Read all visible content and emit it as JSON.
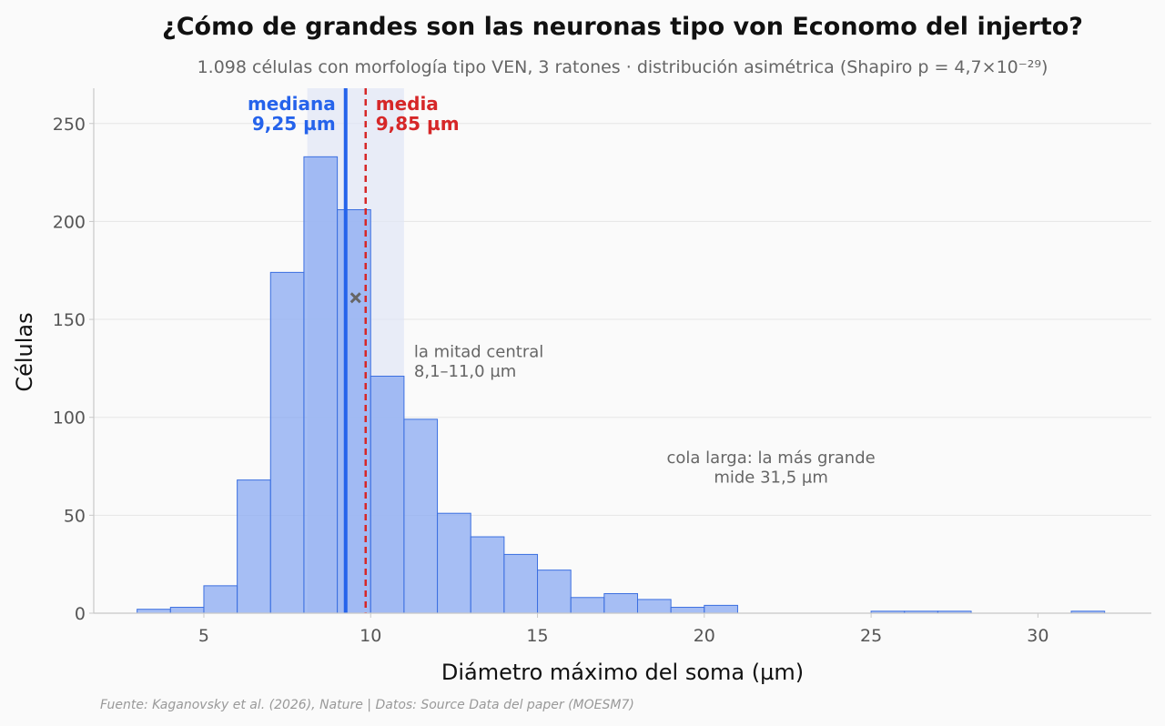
{
  "chart_data": {
    "type": "bar",
    "title": "¿Cómo de grandes son las neuronas tipo von Economo del injerto?",
    "subtitle": "1.098 células con morfología tipo VEN, 3 ratones · distribución asimétrica (Shapiro p = 4,7×10⁻²⁹)",
    "xlabel": "Diámetro máximo del soma (µm)",
    "ylabel": "Células",
    "xlim": [
      1.7,
      33.4
    ],
    "ylim": [
      0,
      268
    ],
    "xticks": [
      5,
      10,
      15,
      20,
      25,
      30
    ],
    "yticks": [
      0,
      50,
      100,
      150,
      200,
      250
    ],
    "grid": "horizontal",
    "bin_width": 1,
    "bins": [
      {
        "start": 3,
        "count": 2
      },
      {
        "start": 4,
        "count": 3
      },
      {
        "start": 5,
        "count": 14
      },
      {
        "start": 6,
        "count": 68
      },
      {
        "start": 7,
        "count": 174
      },
      {
        "start": 8,
        "count": 233
      },
      {
        "start": 9,
        "count": 206
      },
      {
        "start": 10,
        "count": 121
      },
      {
        "start": 11,
        "count": 99
      },
      {
        "start": 12,
        "count": 51
      },
      {
        "start": 13,
        "count": 39
      },
      {
        "start": 14,
        "count": 30
      },
      {
        "start": 15,
        "count": 22
      },
      {
        "start": 16,
        "count": 8
      },
      {
        "start": 17,
        "count": 10
      },
      {
        "start": 18,
        "count": 7
      },
      {
        "start": 19,
        "count": 3
      },
      {
        "start": 20,
        "count": 4
      },
      {
        "start": 21,
        "count": 0
      },
      {
        "start": 22,
        "count": 0
      },
      {
        "start": 23,
        "count": 0
      },
      {
        "start": 24,
        "count": 0
      },
      {
        "start": 25,
        "count": 1
      },
      {
        "start": 26,
        "count": 1
      },
      {
        "start": 27,
        "count": 1
      },
      {
        "start": 28,
        "count": 0
      },
      {
        "start": 29,
        "count": 0
      },
      {
        "start": 30,
        "count": 0
      },
      {
        "start": 31,
        "count": 1
      }
    ],
    "iqr": [
      8.1,
      11.0
    ],
    "median": 9.25,
    "mean": 9.85,
    "marker": {
      "x": 9.55,
      "y": 161
    },
    "median_label": [
      "mediana",
      "9,25 µm"
    ],
    "mean_label": [
      "media",
      "9,85 µm"
    ],
    "iqr_label": [
      "la mitad central",
      "8,1–11,0 µm"
    ],
    "tail_label": [
      "cola larga: la más grande",
      "mide 31,5 µm"
    ],
    "colors": {
      "bar_fill": "#8aa9f2",
      "bar_stroke": "#3b6fe0",
      "median": "#2563eb",
      "mean": "#d62728",
      "iqr_band": "#dfe5f6",
      "annotation": "#666666",
      "marker": "#666666"
    }
  },
  "source": "Fuente: Kaganovsky et al. (2026), Nature | Datos: Source Data del paper (MOESM7)"
}
